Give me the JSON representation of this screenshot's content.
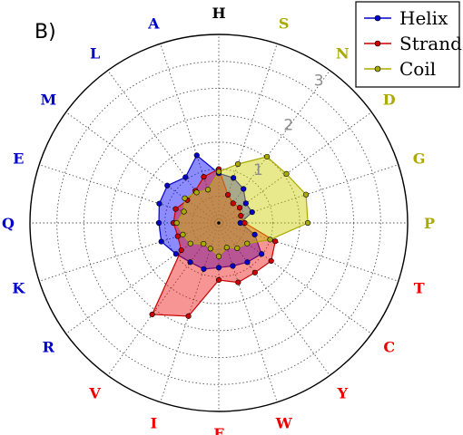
{
  "panel_label": "B)",
  "colors": {
    "helix": "#0000cc",
    "strand": "#cc0000",
    "coil": "#aaaa00",
    "helix_fill": "#0000ff",
    "strand_fill": "#ee1111",
    "coil_fill": "#cccc00"
  },
  "chart_data": {
    "type": "radar",
    "categories": [
      "H",
      "S",
      "N",
      "D",
      "G",
      "P",
      "T",
      "C",
      "Y",
      "W",
      "F",
      "I",
      "V",
      "R",
      "K",
      "Q",
      "E",
      "M",
      "L",
      "A"
    ],
    "category_groups": {
      "helix": [
        "H",
        "M",
        "L",
        "A",
        "E",
        "Q",
        "K",
        "R"
      ],
      "strand": [
        "T",
        "C",
        "Y",
        "W",
        "F",
        "I",
        "V"
      ],
      "coil": [
        "S",
        "N",
        "D",
        "G",
        "P"
      ]
    },
    "angular_start": "top",
    "direction": "clockwise",
    "rlim": [
      0,
      3.5
    ],
    "rticks": [
      1,
      2,
      3
    ],
    "rtick_labels": [
      "1",
      "2",
      "3"
    ],
    "grid": true,
    "legend_position": "top-right",
    "series": [
      {
        "name": "Helix",
        "values": [
          0.92,
          0.88,
          0.78,
          0.62,
          0.65,
          0.4,
          0.7,
          0.98,
          0.9,
          0.84,
          0.83,
          0.9,
          0.9,
          0.98,
          1.12,
          1.11,
          1.16,
          1.18,
          1.05,
          1.32
        ]
      },
      {
        "name": "Strand",
        "values": [
          1.0,
          0.55,
          0.45,
          0.48,
          0.43,
          0.48,
          1.1,
          1.2,
          1.14,
          1.16,
          1.06,
          1.82,
          2.1,
          0.86,
          0.8,
          0.84,
          0.84,
          0.72,
          0.74,
          0.9
        ]
      },
      {
        "name": "Coil",
        "values": [
          0.95,
          1.15,
          1.52,
          1.55,
          1.7,
          1.65,
          1.0,
          0.65,
          0.58,
          0.48,
          0.62,
          0.5,
          0.48,
          0.65,
          0.7,
          0.78,
          0.68,
          0.78,
          0.7,
          0.65
        ]
      }
    ]
  }
}
